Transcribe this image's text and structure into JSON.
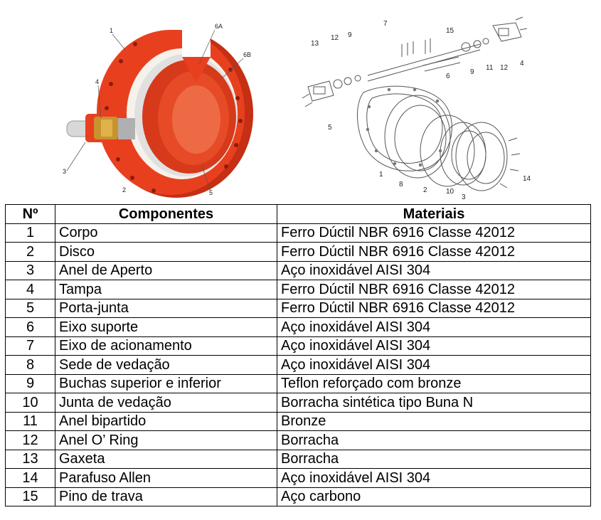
{
  "figures": {
    "left_callouts": [
      "1",
      "6A",
      "6B",
      "4",
      "3",
      "2",
      "5"
    ],
    "right_callouts": [
      "7",
      "13",
      "12",
      "9",
      "15",
      "4",
      "12",
      "11",
      "9",
      "6",
      "5",
      "1",
      "8",
      "2",
      "10",
      "3",
      "14"
    ],
    "colors": {
      "valve_body": "#e8401f",
      "valve_dark": "#b8280f",
      "drawing_line": "#555555"
    }
  },
  "table": {
    "headers": {
      "num": "Nº",
      "component": "Componentes",
      "material": "Materiais"
    },
    "rows": [
      {
        "num": "1",
        "component": "Corpo",
        "material": "Ferro Dúctil NBR 6916 Classe 42012"
      },
      {
        "num": "2",
        "component": "Disco",
        "material": "Ferro Dúctil NBR 6916 Classe 42012"
      },
      {
        "num": "3",
        "component": "Anel de Aperto",
        "material": "Aço inoxidável AISI 304"
      },
      {
        "num": "4",
        "component": "Tampa",
        "material": "Ferro Dúctil NBR 6916 Classe 42012"
      },
      {
        "num": "5",
        "component": "Porta-junta",
        "material": "Ferro Dúctil NBR 6916 Classe 42012"
      },
      {
        "num": "6",
        "component": "Eixo suporte",
        "material": "Aço inoxidável AISI 304"
      },
      {
        "num": "7",
        "component": "Eixo de acionamento",
        "material": "Aço inoxidável AISI 304"
      },
      {
        "num": "8",
        "component": "Sede de vedação",
        "material": "Aço inoxidável AISI 304"
      },
      {
        "num": "9",
        "component": "Buchas superior e inferior",
        "material": "Teflon reforçado com bronze"
      },
      {
        "num": "10",
        "component": "Junta de vedação",
        "material": "Borracha sintética tipo Buna N"
      },
      {
        "num": "11",
        "component": "Anel bipartido",
        "material": "Bronze"
      },
      {
        "num": "12",
        "component": "Anel O’ Ring",
        "material": "Borracha"
      },
      {
        "num": "13",
        "component": "Gaxeta",
        "material": "Borracha"
      },
      {
        "num": "14",
        "component": "Parafuso Allen",
        "material": "Aço inoxidável AISI 304"
      },
      {
        "num": "15",
        "component": "Pino de trava",
        "material": "Aço carbono"
      }
    ]
  }
}
